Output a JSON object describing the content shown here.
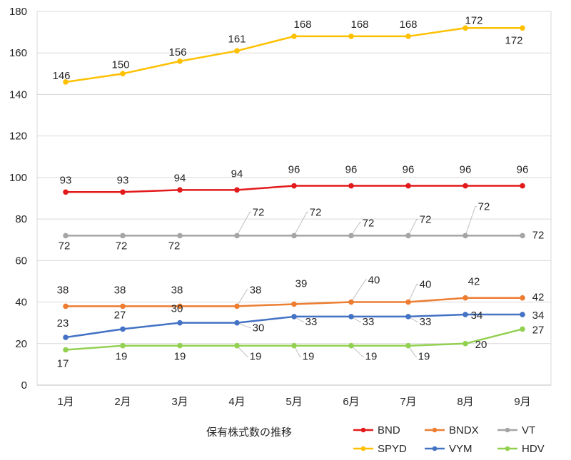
{
  "chart_data": {
    "type": "line",
    "title": "",
    "xlabel": "保有株式数の推移",
    "ylabel": "",
    "categories": [
      "1月",
      "2月",
      "3月",
      "4月",
      "5月",
      "6月",
      "7月",
      "8月",
      "9月"
    ],
    "ylim": [
      0,
      180
    ],
    "yticks": [
      0,
      20,
      40,
      60,
      80,
      100,
      120,
      140,
      160,
      180
    ],
    "grid": true,
    "legend_position": "bottom-right",
    "series": [
      {
        "name": "BND",
        "color": "#e31a1c",
        "values": [
          93,
          93,
          94,
          94,
          96,
          96,
          96,
          96,
          96
        ]
      },
      {
        "name": "BNDX",
        "color": "#ed7d31",
        "values": [
          38,
          38,
          38,
          38,
          39,
          40,
          40,
          42,
          42
        ]
      },
      {
        "name": "VT",
        "color": "#a5a5a5",
        "values": [
          72,
          72,
          72,
          72,
          72,
          72,
          72,
          72,
          72
        ]
      },
      {
        "name": "SPYD",
        "color": "#ffc000",
        "values": [
          146,
          150,
          156,
          161,
          168,
          168,
          168,
          172,
          172
        ]
      },
      {
        "name": "VYM",
        "color": "#4472c4",
        "values": [
          23,
          27,
          30,
          30,
          33,
          33,
          33,
          34,
          34
        ]
      },
      {
        "name": "HDV",
        "color": "#92d050",
        "values": [
          17,
          19,
          19,
          19,
          19,
          19,
          19,
          20,
          27
        ]
      }
    ]
  }
}
